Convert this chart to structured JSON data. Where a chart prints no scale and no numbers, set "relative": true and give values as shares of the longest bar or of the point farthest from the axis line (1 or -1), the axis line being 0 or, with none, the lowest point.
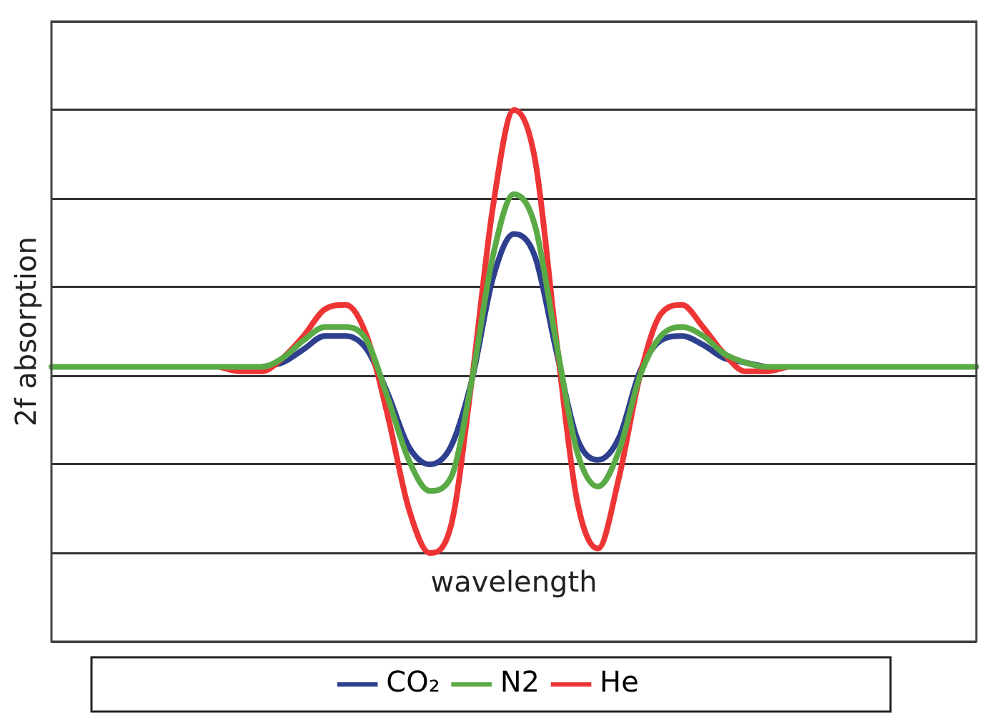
{
  "chart_data": {
    "type": "line",
    "relative": true,
    "xlabel": "wavelength",
    "ylabel": "2f absorption",
    "grid": "y",
    "legend": "bottom",
    "marker": "none",
    "line_style": "solid",
    "categories": [
      null,
      null,
      null,
      null,
      null,
      null,
      null,
      null,
      null,
      null,
      null,
      null,
      null,
      null,
      null,
      null,
      null,
      null,
      null,
      null,
      null,
      null,
      null,
      null,
      null,
      null,
      null,
      null,
      null,
      null,
      null,
      null,
      null,
      null,
      null,
      null,
      null,
      null,
      null,
      null,
      null,
      null,
      null,
      null,
      null
    ],
    "series": [
      {
        "name": "CO₂",
        "color": "#2e3f8f",
        "values": [
          null,
          null,
          null,
          null,
          null,
          null,
          null,
          null,
          null,
          null,
          0.42,
          0.43,
          0.46,
          0.49,
          0.49,
          0.46,
          0.36,
          0.24,
          0.2,
          0.24,
          0.39,
          0.62,
          0.72,
          0.67,
          0.46,
          0.26,
          0.21,
          0.26,
          0.41,
          0.48,
          0.49,
          0.47,
          0.44,
          0.43,
          0.42,
          null,
          null,
          null,
          null,
          null,
          null,
          null,
          null,
          null,
          null
        ]
      },
      {
        "name": "N2",
        "color": "#5aaa46",
        "values": [
          0.42,
          0.42,
          0.42,
          0.42,
          0.42,
          0.42,
          0.42,
          0.42,
          0.42,
          0.42,
          0.42,
          0.44,
          0.48,
          0.51,
          0.51,
          0.48,
          0.35,
          0.21,
          0.14,
          0.17,
          0.39,
          0.67,
          0.81,
          0.74,
          0.48,
          0.23,
          0.15,
          0.23,
          0.4,
          0.49,
          0.51,
          0.49,
          0.45,
          0.43,
          0.42,
          0.42,
          0.42,
          0.42,
          0.42,
          0.42,
          0.42,
          0.42,
          0.42,
          0.42,
          0.42
        ]
      },
      {
        "name": "He",
        "color": "#ee3535",
        "values": [
          null,
          null,
          null,
          null,
          null,
          null,
          null,
          null,
          0.42,
          0.41,
          0.41,
          0.44,
          0.49,
          0.55,
          0.56,
          0.49,
          0.31,
          0.1,
          0,
          0.06,
          0.39,
          0.78,
          1,
          0.89,
          0.49,
          0.12,
          0.01,
          0.17,
          0.4,
          0.54,
          0.56,
          0.51,
          0.45,
          0.41,
          0.41,
          0.42,
          null,
          null,
          null,
          null,
          null,
          null,
          null,
          null,
          null
        ]
      }
    ]
  }
}
